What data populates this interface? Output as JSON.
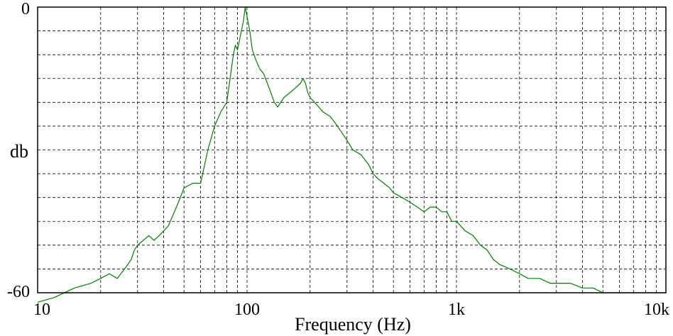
{
  "chart_data": {
    "type": "line",
    "title": "",
    "xlabel": "Frequency (Hz)",
    "ylabel": "db",
    "x_scale": "log",
    "xlim": [
      10,
      10000
    ],
    "ylim": [
      -60,
      0
    ],
    "x_ticks": [
      {
        "value": 10,
        "label": "10"
      },
      {
        "value": 100,
        "label": "100"
      },
      {
        "value": 1000,
        "label": "1k"
      },
      {
        "value": 10000,
        "label": "10k"
      }
    ],
    "y_ticks": [
      {
        "value": 0,
        "label": "0"
      },
      {
        "value": -60,
        "label": "-60"
      }
    ],
    "y_grid_step": 5,
    "grid": true,
    "line_color": "#008000",
    "series": [
      {
        "x": [
          10,
          12,
          15,
          18,
          20,
          22,
          24,
          26,
          27,
          28,
          29,
          30,
          32,
          34,
          36,
          38,
          40,
          42,
          44,
          46,
          48,
          50,
          55,
          60,
          65,
          70,
          75,
          80,
          83,
          86,
          88,
          90,
          93,
          96,
          98,
          100,
          103,
          106,
          110,
          115,
          120,
          125,
          130,
          135,
          140,
          150,
          160,
          170,
          180,
          185,
          190,
          195,
          200,
          210,
          220,
          230,
          250,
          270,
          290,
          300,
          320,
          350,
          380,
          400,
          420,
          450,
          480,
          500,
          550,
          600,
          650,
          700,
          750,
          800,
          850,
          900,
          950,
          1000,
          1100,
          1200,
          1300,
          1400,
          1500,
          1600,
          1800,
          2000,
          2200,
          2500,
          2800,
          3000,
          3500,
          4000,
          4500,
          5000,
          5500,
          6000,
          7000,
          8000,
          9000,
          10000
        ],
        "y": [
          -62,
          -61,
          -59,
          -58,
          -57,
          -56,
          -57,
          -55,
          -54,
          -53,
          -51,
          -50,
          -49,
          -48,
          -49,
          -48,
          -47,
          -46,
          -44,
          -42,
          -40,
          -38,
          -37,
          -37,
          -30,
          -25,
          -22,
          -20,
          -15,
          -10,
          -8,
          -9,
          -6,
          -3,
          0,
          -2,
          -5,
          -9,
          -11,
          -13,
          -14,
          -16,
          -18,
          -20,
          -21,
          -19,
          -18,
          -17,
          -16,
          -15,
          -16,
          -18,
          -19,
          -20,
          -21,
          -22,
          -23,
          -25,
          -27,
          -28,
          -30,
          -31,
          -33,
          -35,
          -36,
          -37,
          -38,
          -39,
          -40,
          -41,
          -42,
          -43,
          -42,
          -42,
          -43,
          -43,
          -45,
          -45,
          -47,
          -48,
          -50,
          -51,
          -53,
          -54,
          -55,
          -56,
          -57,
          -57,
          -58,
          -58,
          -58,
          -59,
          -59,
          -60,
          -60,
          -60,
          -60,
          -60,
          -60,
          -60
        ]
      }
    ]
  }
}
